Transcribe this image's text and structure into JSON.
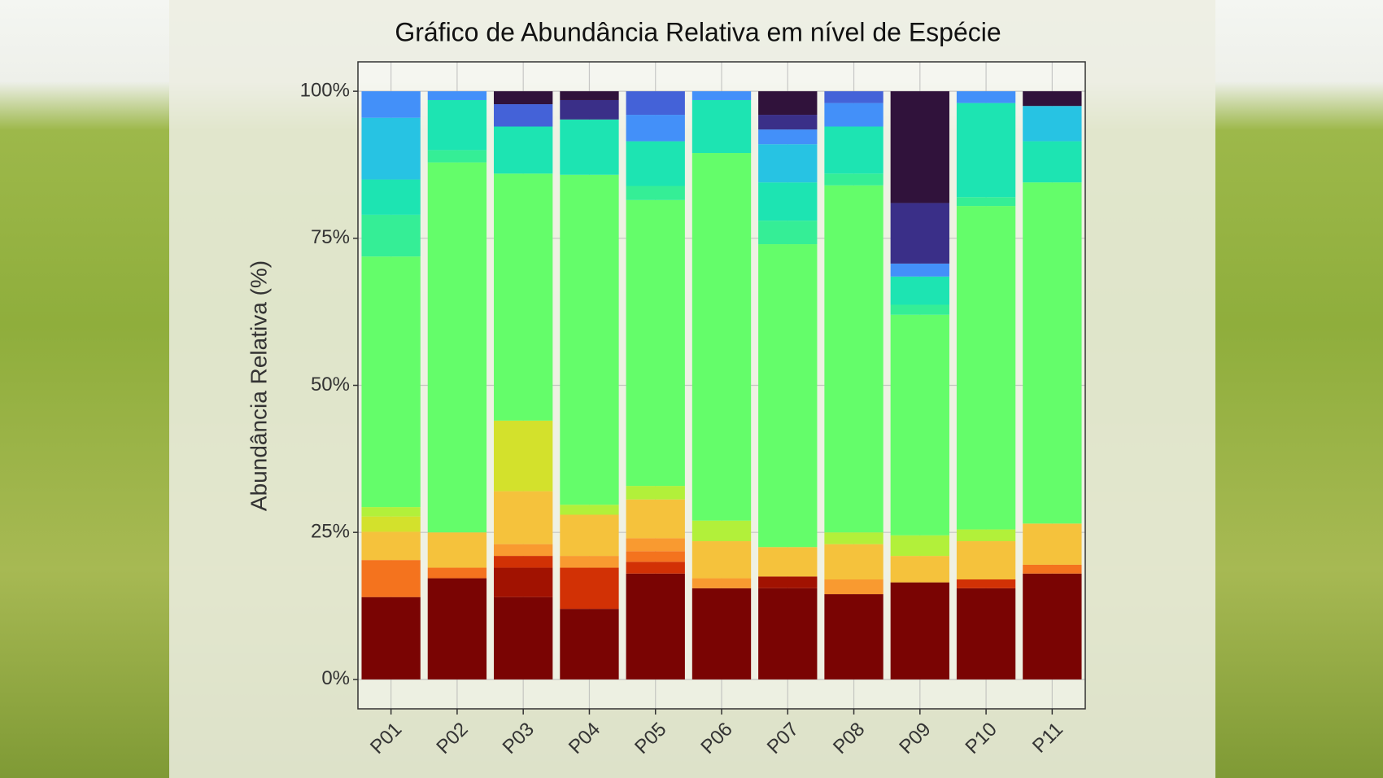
{
  "chart_data": {
    "type": "stacked_bar",
    "title": "Gráfico de Abundância Relativa em nível de Espécie",
    "y_label": "Abundância Relativa (%)",
    "categories": [
      "P01",
      "P02",
      "P03",
      "P04",
      "P05",
      "P06",
      "P07",
      "P08",
      "P09",
      "P10",
      "P11"
    ],
    "ylim": [
      -5,
      105
    ],
    "yticks": [
      {
        "value": 0,
        "label": "0%"
      },
      {
        "value": 25,
        "label": "25%"
      },
      {
        "value": 50,
        "label": "50%"
      },
      {
        "value": 75,
        "label": "75%"
      },
      {
        "value": 100,
        "label": "100%"
      }
    ],
    "grid": true,
    "series": [
      {
        "color": "#7a0403",
        "values": [
          14,
          17.2,
          14,
          12,
          18,
          15.5,
          15.5,
          14.5,
          16.5,
          15.5,
          18
        ]
      },
      {
        "color": "#a11201",
        "values": [
          0,
          0,
          5,
          0,
          0,
          0,
          2,
          0,
          0,
          0,
          0
        ]
      },
      {
        "color": "#d23105",
        "values": [
          0,
          0,
          2,
          7,
          2,
          0,
          0,
          0,
          0,
          1.5,
          0
        ]
      },
      {
        "color": "#f4731e",
        "values": [
          6.3,
          1.8,
          0,
          0,
          1.8,
          0,
          0,
          0,
          0,
          0,
          1.5
        ]
      },
      {
        "color": "#f99a30",
        "values": [
          0,
          0,
          2,
          2,
          2.2,
          1.7,
          0,
          2.5,
          0,
          0,
          0
        ]
      },
      {
        "color": "#f5c23c",
        "values": [
          4.8,
          6,
          9,
          7,
          6.6,
          6.3,
          5,
          6,
          4.5,
          6.5,
          7
        ]
      },
      {
        "color": "#d3e12c",
        "values": [
          2.6,
          0,
          12,
          0,
          0,
          0,
          0,
          0,
          0,
          0,
          0
        ]
      },
      {
        "color": "#b2f03a",
        "values": [
          1.6,
          0,
          0,
          1.7,
          2.3,
          3.5,
          0,
          2,
          3.5,
          2,
          0
        ]
      },
      {
        "color": "#64fd6a",
        "values": [
          42.6,
          62.9,
          42,
          56.1,
          48.6,
          62.5,
          51.5,
          59,
          37.5,
          55,
          58
        ]
      },
      {
        "color": "#35ee96",
        "values": [
          7.1,
          2.1,
          0,
          0,
          2.4,
          0,
          4,
          2,
          1.7,
          1.5,
          0
        ]
      },
      {
        "color": "#1de4b2",
        "values": [
          6,
          8.5,
          8,
          9.4,
          7.6,
          9,
          6.5,
          8,
          4.8,
          16,
          7
        ]
      },
      {
        "color": "#27c3e3",
        "values": [
          10.5,
          0,
          0,
          0,
          0,
          0,
          6.5,
          0,
          0,
          0,
          6
        ]
      },
      {
        "color": "#4390f9",
        "values": [
          4.5,
          1.5,
          0,
          0,
          4.5,
          1.5,
          2.5,
          4,
          2.2,
          2,
          0
        ]
      },
      {
        "color": "#4462d8",
        "values": [
          0,
          0,
          3.8,
          0,
          4,
          0,
          0,
          2,
          0,
          0,
          0
        ]
      },
      {
        "color": "#3a2f88",
        "values": [
          0,
          0,
          0,
          3.3,
          0,
          0,
          2.5,
          0,
          10.3,
          0,
          0
        ]
      },
      {
        "color": "#30123b",
        "values": [
          0,
          0,
          2.2,
          1.5,
          0,
          0,
          4,
          0,
          19,
          0,
          2.5
        ]
      }
    ]
  }
}
